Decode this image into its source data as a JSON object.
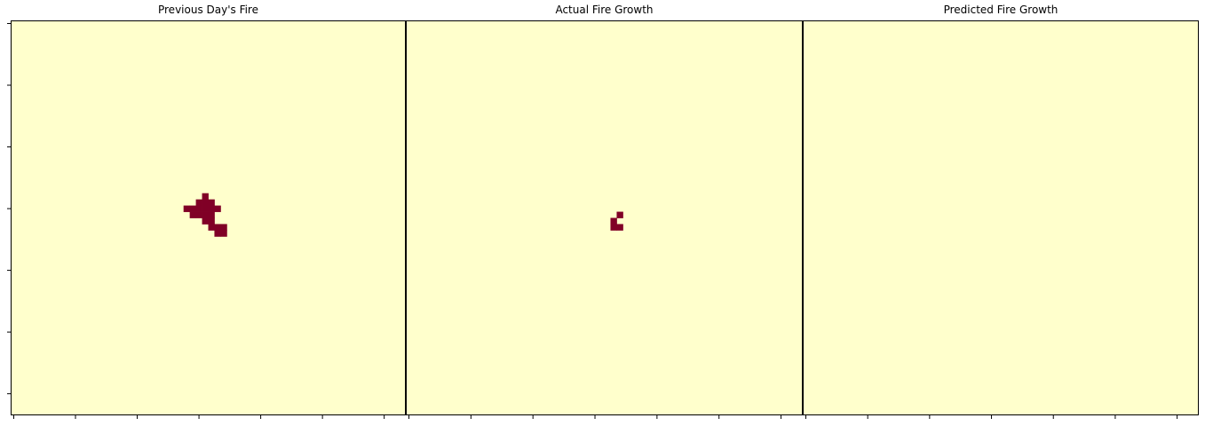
{
  "colors": {
    "background": "#ffffcc",
    "fire": "#800026",
    "axis": "#000000"
  },
  "chart_data": [
    {
      "type": "heatmap",
      "title": "Previous Day's Fire",
      "grid_size": 64,
      "fire_cells": [
        [
          28,
          31
        ],
        [
          29,
          30
        ],
        [
          29,
          31
        ],
        [
          29,
          32
        ],
        [
          30,
          28
        ],
        [
          30,
          29
        ],
        [
          30,
          30
        ],
        [
          30,
          31
        ],
        [
          30,
          32
        ],
        [
          30,
          33
        ],
        [
          31,
          29
        ],
        [
          31,
          30
        ],
        [
          31,
          31
        ],
        [
          31,
          32
        ],
        [
          32,
          31
        ],
        [
          32,
          32
        ],
        [
          33,
          32
        ],
        [
          33,
          33
        ],
        [
          33,
          34
        ],
        [
          34,
          33
        ],
        [
          34,
          34
        ]
      ]
    },
    {
      "type": "heatmap",
      "title": "Actual Fire Growth",
      "grid_size": 64,
      "fire_cells": [
        [
          31,
          34
        ],
        [
          32,
          33
        ],
        [
          33,
          33
        ],
        [
          33,
          34
        ]
      ]
    },
    {
      "type": "heatmap",
      "title": "Predicted Fire Growth",
      "grid_size": 64,
      "fire_cells": []
    }
  ]
}
